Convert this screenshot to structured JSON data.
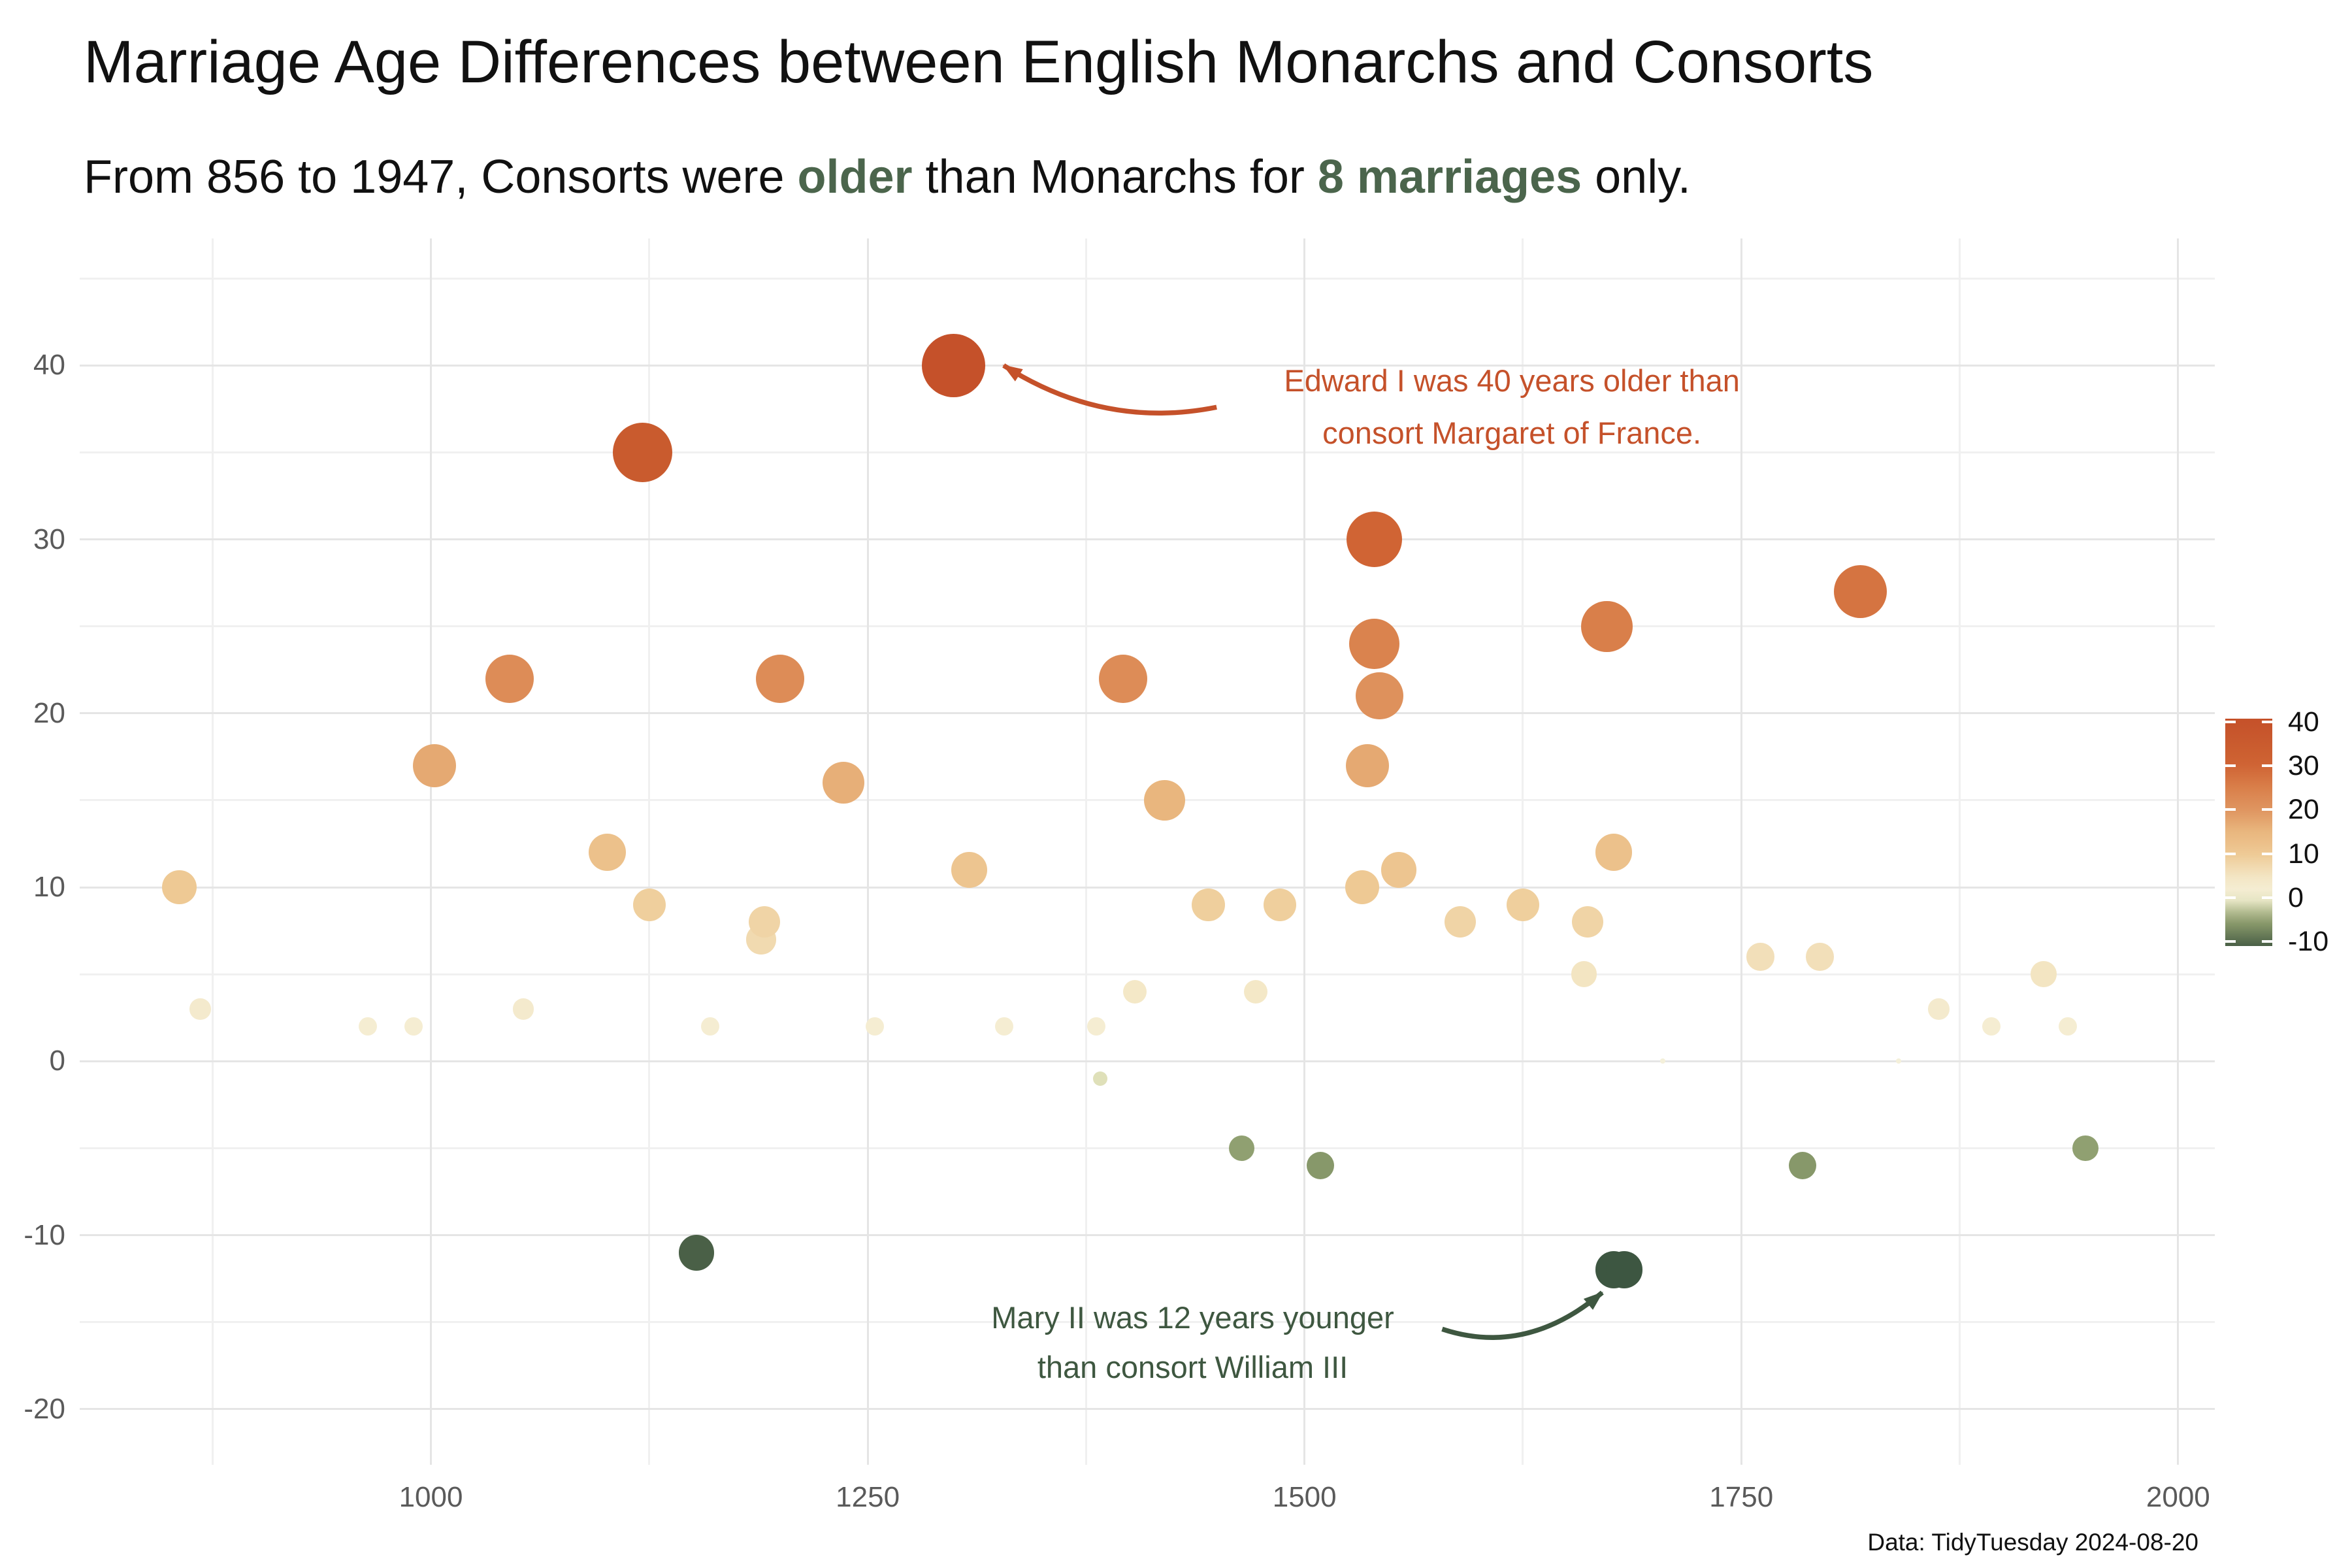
{
  "title": "Marriage Age Differences between English Monarchs and Consorts",
  "subtitle": {
    "prefix": "From 856 to 1947, Consorts were ",
    "accent1": "older",
    "middle": " than Monarchs for ",
    "accent2": "8 marriages",
    "suffix": " only."
  },
  "caption": "Data: TidyTuesday 2024-08-20",
  "colors": {
    "background": "#ffffff",
    "title_text": "#111111",
    "subtitle_accent_green": "#4b654c",
    "axis_text": "#5a5a5a",
    "grid_major": "#e5e5e5",
    "grid_minor": "#f0f0f0",
    "annotation_orange": "#c5512a",
    "annotation_green": "#3e5740"
  },
  "chart_data": {
    "type": "scatter",
    "title": "Marriage Age Differences between English Monarchs and Consorts",
    "xlabel": "",
    "ylabel": "",
    "x_domain": [
      799,
      2021
    ],
    "y_domain": [
      -23.2,
      47.3
    ],
    "x_ticks": [
      1000,
      1250,
      1500,
      1750,
      2000
    ],
    "x_minor_ticks": [
      875,
      1125,
      1375,
      1625,
      1875
    ],
    "y_ticks": [
      40,
      30,
      20,
      10,
      0,
      -10,
      -20
    ],
    "y_minor_ticks": [
      45,
      35,
      25,
      15,
      5,
      -5,
      -15
    ],
    "grid": true,
    "point_meaning": "x = marriage year, y = monarch age minus consort age (years), size = |difference|, color = difference",
    "points": [
      [
        856,
        10
      ],
      [
        868,
        3
      ],
      [
        964,
        2
      ],
      [
        990,
        2
      ],
      [
        1002,
        17
      ],
      [
        1045,
        22
      ],
      [
        1053,
        3
      ],
      [
        1101,
        12
      ],
      [
        1121,
        35
      ],
      [
        1125,
        9
      ],
      [
        1152,
        -11
      ],
      [
        1160,
        2
      ],
      [
        1189,
        7
      ],
      [
        1191,
        8
      ],
      [
        1200,
        22
      ],
      [
        1236,
        16
      ],
      [
        1254,
        2
      ],
      [
        1299,
        40
      ],
      [
        1308,
        11
      ],
      [
        1328,
        2
      ],
      [
        1381,
        2
      ],
      [
        1383,
        -1
      ],
      [
        1396,
        22
      ],
      [
        1403,
        4
      ],
      [
        1420,
        15
      ],
      [
        1445,
        9
      ],
      [
        1464,
        -5
      ],
      [
        1472,
        4
      ],
      [
        1486,
        9
      ],
      [
        1509,
        -6
      ],
      [
        1533,
        10
      ],
      [
        1536,
        17
      ],
      [
        1540,
        30
      ],
      [
        1540,
        24
      ],
      [
        1543,
        21
      ],
      [
        1554,
        11
      ],
      [
        1589,
        8
      ],
      [
        1625,
        9
      ],
      [
        1660,
        5
      ],
      [
        1662,
        8
      ],
      [
        1673,
        25
      ],
      [
        1677,
        12
      ],
      [
        1677,
        -12
      ],
      [
        1683,
        -12
      ],
      [
        1705,
        0
      ],
      [
        1761,
        6
      ],
      [
        1785,
        -6
      ],
      [
        1795,
        6
      ],
      [
        1818,
        27
      ],
      [
        1840,
        0
      ],
      [
        1863,
        3
      ],
      [
        1893,
        2
      ],
      [
        1923,
        5
      ],
      [
        1937,
        2
      ],
      [
        1947,
        -5
      ]
    ],
    "size_scale": {
      "max_abs": 40,
      "min_radius": 4,
      "max_radius": 48.5
    },
    "colormap": [
      [
        -12,
        "#3d5641"
      ],
      [
        -10,
        "#566a4d"
      ],
      [
        -6,
        "#87986a"
      ],
      [
        -5,
        "#90a071"
      ],
      [
        -1,
        "#dfe0b9"
      ],
      [
        0,
        "#f4f0da"
      ],
      [
        2,
        "#f5edd2"
      ],
      [
        5,
        "#f3e5c2"
      ],
      [
        10,
        "#eec994"
      ],
      [
        15,
        "#e9b67e"
      ],
      [
        20,
        "#df9560"
      ],
      [
        25,
        "#d97f4a"
      ],
      [
        30,
        "#d06434"
      ],
      [
        35,
        "#c95b2e"
      ],
      [
        40,
        "#c5512a"
      ]
    ],
    "legend": {
      "labels": [
        40,
        30,
        20,
        10,
        0,
        -10
      ],
      "value_top": 40.7,
      "value_bottom": -11
    },
    "annotations": [
      {
        "id": "edward",
        "lines": [
          "Edward I was 40 years older than",
          "consort Margaret of France."
        ],
        "color": "#c5512a",
        "center_year": 1618.7,
        "line_values": [
          39.1,
          36.1
        ],
        "arrow": {
          "from": [
            1449.7,
            37.6
          ],
          "ctrl": [
            1385.4,
            36.3
          ],
          "to": [
            1327.8,
            40.0
          ]
        }
      },
      {
        "id": "mary",
        "lines": [
          "Mary II was 12 years younger",
          "than consort William III"
        ],
        "color": "#3e5740",
        "center_year": 1436,
        "line_values": [
          -14.75,
          -17.6
        ],
        "arrow": {
          "from": [
            1578.8,
            -15.4
          ],
          "ctrl": [
            1626.7,
            -17.0
          ],
          "to": [
            1670.4,
            -13.3
          ]
        }
      }
    ]
  }
}
